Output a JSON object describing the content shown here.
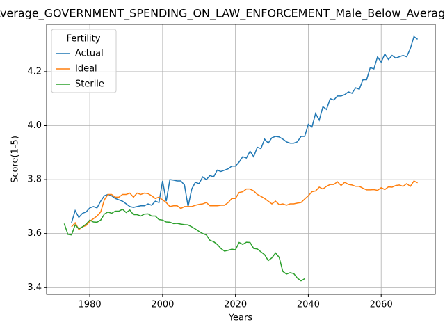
{
  "chart_data": {
    "type": "line",
    "title": "Average_GOVERNMENT_SPENDING_ON_LAW_ENFORCEMENT_Male_Below_Average",
    "xlabel": "Years",
    "ylabel": "Score(1-5)",
    "legend_title": "Fertility",
    "legend": "upper left",
    "grid": true,
    "xlim": [
      1968.15,
      2074.85
    ],
    "ylim": [
      3.375,
      4.375
    ],
    "xticks": [
      1980,
      2000,
      2020,
      2040,
      2060
    ],
    "yticks": [
      3.4,
      3.6,
      3.8,
      {
        "value": 4,
        "label": "4.0"
      },
      4.2
    ],
    "x": [
      1973,
      1974,
      1975,
      1976,
      1977,
      1978,
      1979,
      1980,
      1981,
      1982,
      1983,
      1984,
      1985,
      1986,
      1987,
      1988,
      1989,
      1990,
      1991,
      1992,
      1993,
      1994,
      1995,
      1996,
      1997,
      1998,
      1999,
      2000,
      2001,
      2002,
      2003,
      2004,
      2005,
      2006,
      2007,
      2008,
      2009,
      2010,
      2011,
      2012,
      2013,
      2014,
      2015,
      2016,
      2017,
      2018,
      2019,
      2020,
      2021,
      2022,
      2023,
      2024,
      2025,
      2026,
      2027,
      2028,
      2029,
      2030,
      2031,
      2032,
      2033,
      2034,
      2035,
      2036,
      2037,
      2038,
      2039,
      2040,
      2041,
      2042,
      2043,
      2044,
      2045,
      2046,
      2047,
      2048,
      2049,
      2050,
      2051,
      2052,
      2053,
      2054,
      2055,
      2056,
      2057,
      2058,
      2059,
      2060,
      2061,
      2062,
      2063,
      2064,
      2065,
      2066,
      2067,
      2068,
      2069,
      2070
    ],
    "series": [
      {
        "name": "Actual",
        "color": "#1f77b4",
        "values": [
          null,
          null,
          3.64,
          3.685,
          3.66,
          3.675,
          3.68,
          3.695,
          3.7,
          3.695,
          3.72,
          3.74,
          3.745,
          3.74,
          3.73,
          3.725,
          3.72,
          3.71,
          3.7,
          3.697,
          3.7,
          3.703,
          3.703,
          3.71,
          3.705,
          3.72,
          3.715,
          3.795,
          3.72,
          3.8,
          3.798,
          3.795,
          3.795,
          3.78,
          3.7,
          3.765,
          3.79,
          3.785,
          3.81,
          3.8,
          3.815,
          3.81,
          3.835,
          3.83,
          3.835,
          3.84,
          3.85,
          3.85,
          3.865,
          3.885,
          3.88,
          3.905,
          3.885,
          3.92,
          3.915,
          3.95,
          3.935,
          3.955,
          3.96,
          3.958,
          3.95,
          3.94,
          3.935,
          3.935,
          3.94,
          3.96,
          3.96,
          4.005,
          3.995,
          4.045,
          4.02,
          4.07,
          4.06,
          4.1,
          4.095,
          4.11,
          4.11,
          4.115,
          4.125,
          4.12,
          4.14,
          4.135,
          4.17,
          4.17,
          4.215,
          4.21,
          4.255,
          4.235,
          4.265,
          4.245,
          4.26,
          4.25,
          4.255,
          4.26,
          4.255,
          4.285,
          4.33,
          4.32
        ]
      },
      {
        "name": "Ideal",
        "color": "#ff7f0e",
        "values": [
          null,
          null,
          3.625,
          3.64,
          3.615,
          3.625,
          3.63,
          3.645,
          3.655,
          3.665,
          3.68,
          3.725,
          3.745,
          3.745,
          3.735,
          3.735,
          3.745,
          3.745,
          3.75,
          3.735,
          3.75,
          3.745,
          3.75,
          3.748,
          3.74,
          3.73,
          3.735,
          3.725,
          3.715,
          3.7,
          3.703,
          3.703,
          3.693,
          3.7,
          3.7,
          3.7,
          3.705,
          3.708,
          3.71,
          3.715,
          3.703,
          3.703,
          3.703,
          3.705,
          3.705,
          3.715,
          3.73,
          3.73,
          3.752,
          3.755,
          3.765,
          3.765,
          3.758,
          3.745,
          3.738,
          3.73,
          3.72,
          3.71,
          3.72,
          3.707,
          3.71,
          3.705,
          3.71,
          3.71,
          3.713,
          3.715,
          3.728,
          3.74,
          3.755,
          3.758,
          3.772,
          3.765,
          3.775,
          3.782,
          3.782,
          3.792,
          3.778,
          3.79,
          3.782,
          3.78,
          3.775,
          3.775,
          3.768,
          3.762,
          3.762,
          3.763,
          3.76,
          3.77,
          3.763,
          3.773,
          3.772,
          3.778,
          3.78,
          3.775,
          3.785,
          3.775,
          3.795,
          3.788
        ]
      },
      {
        "name": "Sterile",
        "color": "#2ca02c",
        "values": [
          3.637,
          3.597,
          3.595,
          3.632,
          3.618,
          3.625,
          3.635,
          3.65,
          3.643,
          3.642,
          3.65,
          3.672,
          3.68,
          3.675,
          3.683,
          3.683,
          3.69,
          3.678,
          3.687,
          3.67,
          3.67,
          3.665,
          3.672,
          3.673,
          3.665,
          3.665,
          3.652,
          3.65,
          3.643,
          3.642,
          3.637,
          3.638,
          3.635,
          3.633,
          3.632,
          3.625,
          3.617,
          3.608,
          3.6,
          3.595,
          3.575,
          3.57,
          3.56,
          3.545,
          3.535,
          3.538,
          3.542,
          3.54,
          3.567,
          3.56,
          3.568,
          3.567,
          3.545,
          3.543,
          3.532,
          3.522,
          3.5,
          3.51,
          3.528,
          3.512,
          3.46,
          3.45,
          3.455,
          3.452,
          3.435,
          3.425,
          3.433,
          null,
          null,
          null,
          null,
          null,
          null,
          null,
          null,
          null,
          null,
          null,
          null,
          null,
          null,
          null,
          null,
          null,
          null,
          null,
          null,
          null,
          null,
          null,
          null,
          null,
          null,
          null,
          null,
          null,
          null,
          null
        ]
      }
    ]
  }
}
